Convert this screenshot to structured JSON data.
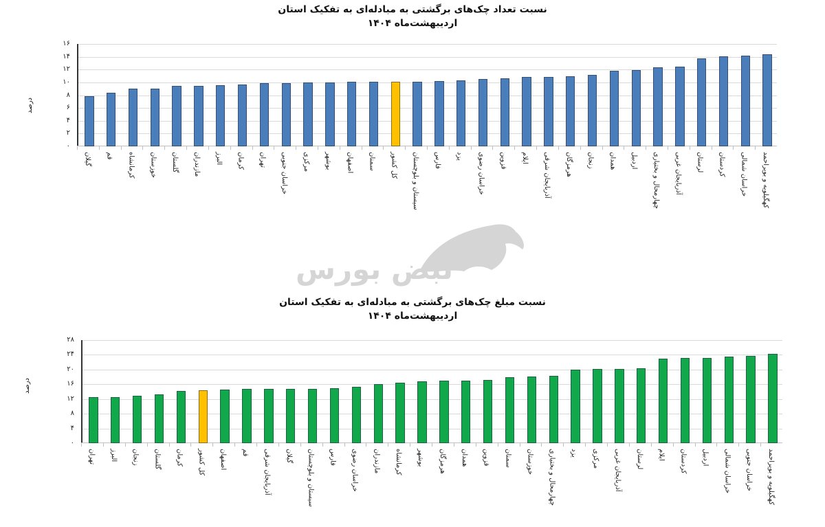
{
  "watermark": {
    "text": "نبض بورس",
    "icon": "bull-icon"
  },
  "colors": {
    "blue_bar": "#4a7ebb",
    "green_bar": "#10a84a",
    "highlight_bar": "#ffc000",
    "grid": "#d9d9d9"
  },
  "chart_data": [
    {
      "type": "bar",
      "title": "نسبت تعداد چک‌های برگشتی به مبادله‌ای به تفکیک استان",
      "subtitle": "اردیبهشت‌ماه ۱۴۰۴",
      "xlabel": "",
      "ylabel": "درصد",
      "ylim": [
        0,
        16
      ],
      "yticks": [
        0,
        2,
        4,
        6,
        8,
        10,
        12,
        14,
        16
      ],
      "ytick_labels": [
        "۰",
        "۲",
        "۴",
        "۶",
        "۸",
        "۱۰",
        "۱۲",
        "۱۴",
        "۱۶"
      ],
      "grid": true,
      "legend": "none",
      "highlight": "کل کشور",
      "categories": [
        "گیلان",
        "قم",
        "کرمانشاه",
        "خوزستان",
        "گلستان",
        "مازندران",
        "البرز",
        "کرمان",
        "تهران",
        "خراسان جنوبی",
        "مرکزی",
        "بوشهر",
        "اصفهان",
        "سمنان",
        "کل کشور",
        "سیستان و بلوچستان",
        "فارس",
        "یزد",
        "خراسان رضوی",
        "قزوین",
        "ایلام",
        "آذربایجان شرقی",
        "هرمزگان",
        "زنجان",
        "همدان",
        "اردبیل",
        "چهارمحال و بختیاری",
        "آذربایجان غربی",
        "لرستان",
        "کردستان",
        "خراسان شمالی",
        "کهگیلویه و بویراحمد"
      ],
      "values": [
        7.8,
        8.4,
        9.0,
        9.0,
        9.4,
        9.4,
        9.6,
        9.7,
        9.9,
        9.9,
        10.0,
        10.0,
        10.1,
        10.1,
        10.1,
        10.1,
        10.2,
        10.3,
        10.5,
        10.6,
        10.8,
        10.9,
        11.0,
        11.2,
        11.8,
        11.9,
        12.3,
        12.5,
        13.7,
        14.1,
        14.2,
        14.4
      ]
    },
    {
      "type": "bar",
      "title": "نسبت مبلغ چک‌های برگشتی به مبادله‌ای به تفکیک استان",
      "subtitle": "اردیبهشت‌ماه ۱۴۰۴",
      "xlabel": "",
      "ylabel": "درصد",
      "ylim": [
        0,
        28
      ],
      "yticks": [
        0,
        4,
        8,
        12,
        16,
        20,
        24,
        28
      ],
      "ytick_labels": [
        "۰",
        "۴",
        "۸",
        "۱۲",
        "۱۶",
        "۲۰",
        "۲۴",
        "۲۸"
      ],
      "grid": true,
      "legend": "none",
      "highlight": "کل کشور",
      "categories": [
        "تهران",
        "البرز",
        "زنجان",
        "گلستان",
        "کرمان",
        "کل کشور",
        "اصفهان",
        "قم",
        "آذربایجان شرقی",
        "گیلان",
        "سیستان و بلوچستان",
        "فارس",
        "خراسان رضوی",
        "مازندران",
        "کرمانشاه",
        "بوشهر",
        "هرمزگان",
        "همدان",
        "قزوین",
        "سمنان",
        "خوزستان",
        "چهارمحال و بختیاری",
        "یزد",
        "مرکزی",
        "آذربایجان غربی",
        "لرستان",
        "ایلام",
        "کردستان",
        "اردبیل",
        "خراسان شمالی",
        "خراسان جنوبی",
        "کهگیلویه و بویراحمد"
      ],
      "values": [
        12.6,
        12.6,
        12.8,
        13.2,
        14.2,
        14.4,
        14.6,
        14.8,
        14.8,
        14.8,
        14.8,
        14.9,
        15.4,
        16.0,
        16.4,
        16.8,
        16.9,
        16.9,
        17.1,
        17.9,
        18.1,
        18.3,
        19.9,
        20.1,
        20.2,
        20.3,
        23.0,
        23.1,
        23.1,
        23.5,
        23.7,
        24.3
      ]
    }
  ]
}
